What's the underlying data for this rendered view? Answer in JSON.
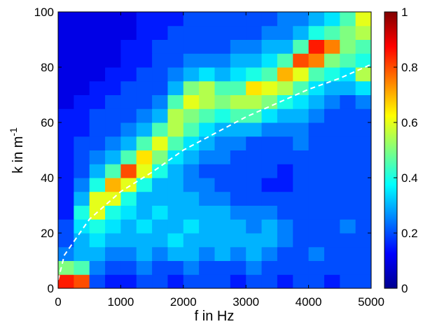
{
  "chart_data": {
    "type": "heatmap",
    "colormap": "jet",
    "xlabel": "f in Hz",
    "ylabel": "k in m",
    "ylabel_sup": "-1",
    "xlim": [
      0,
      5000
    ],
    "ylim": [
      0,
      100
    ],
    "xticks": [
      0,
      1000,
      2000,
      3000,
      4000,
      5000
    ],
    "yticks": [
      0,
      20,
      40,
      60,
      80,
      100
    ],
    "clim": [
      0,
      1
    ],
    "cticks": [
      0,
      0.2,
      0.4,
      0.6,
      0.8,
      1
    ],
    "x_bins": [
      0,
      250,
      500,
      750,
      1000,
      1250,
      1500,
      1750,
      2000,
      2250,
      2500,
      2750,
      3000,
      3250,
      3500,
      3750,
      4000,
      4250,
      4500,
      4750,
      5000
    ],
    "y_bins": [
      0,
      5,
      10,
      15,
      20,
      25,
      30,
      35,
      40,
      45,
      50,
      55,
      60,
      65,
      70,
      75,
      80,
      85,
      90,
      95,
      100
    ],
    "z": [
      [
        0.85,
        0.8,
        0.2,
        0.15,
        0.15,
        0.2,
        0.2,
        0.15,
        0.2,
        0.2,
        0.2,
        0.15,
        0.2,
        0.2,
        0.15,
        0.2,
        0.2,
        0.15,
        0.2,
        0.2
      ],
      [
        0.5,
        0.45,
        0.25,
        0.2,
        0.2,
        0.25,
        0.2,
        0.2,
        0.25,
        0.2,
        0.2,
        0.2,
        0.25,
        0.2,
        0.2,
        0.2,
        0.2,
        0.2,
        0.2,
        0.2
      ],
      [
        0.25,
        0.3,
        0.3,
        0.25,
        0.25,
        0.3,
        0.25,
        0.3,
        0.3,
        0.25,
        0.3,
        0.25,
        0.3,
        0.25,
        0.2,
        0.2,
        0.25,
        0.2,
        0.2,
        0.2
      ],
      [
        0.2,
        0.3,
        0.35,
        0.3,
        0.3,
        0.3,
        0.3,
        0.35,
        0.3,
        0.3,
        0.3,
        0.3,
        0.3,
        0.3,
        0.25,
        0.2,
        0.2,
        0.2,
        0.2,
        0.2
      ],
      [
        0.2,
        0.35,
        0.4,
        0.35,
        0.3,
        0.35,
        0.3,
        0.3,
        0.35,
        0.3,
        0.3,
        0.3,
        0.25,
        0.3,
        0.25,
        0.2,
        0.2,
        0.2,
        0.25,
        0.2
      ],
      [
        0.15,
        0.4,
        0.6,
        0.4,
        0.35,
        0.3,
        0.35,
        0.3,
        0.3,
        0.3,
        0.3,
        0.25,
        0.25,
        0.25,
        0.2,
        0.2,
        0.2,
        0.2,
        0.2,
        0.2
      ],
      [
        0.15,
        0.3,
        0.6,
        0.6,
        0.4,
        0.3,
        0.3,
        0.3,
        0.3,
        0.25,
        0.25,
        0.2,
        0.2,
        0.2,
        0.2,
        0.2,
        0.2,
        0.2,
        0.2,
        0.2
      ],
      [
        0.15,
        0.25,
        0.4,
        0.7,
        0.6,
        0.4,
        0.3,
        0.3,
        0.25,
        0.25,
        0.2,
        0.2,
        0.2,
        0.15,
        0.15,
        0.2,
        0.2,
        0.2,
        0.2,
        0.2
      ],
      [
        0.15,
        0.2,
        0.3,
        0.45,
        0.8,
        0.6,
        0.4,
        0.3,
        0.25,
        0.2,
        0.2,
        0.2,
        0.2,
        0.2,
        0.15,
        0.2,
        0.2,
        0.2,
        0.2,
        0.2
      ],
      [
        0.15,
        0.2,
        0.25,
        0.3,
        0.45,
        0.65,
        0.5,
        0.35,
        0.3,
        0.25,
        0.25,
        0.2,
        0.2,
        0.2,
        0.2,
        0.2,
        0.2,
        0.2,
        0.2,
        0.2
      ],
      [
        0.15,
        0.2,
        0.2,
        0.25,
        0.3,
        0.45,
        0.6,
        0.45,
        0.35,
        0.3,
        0.25,
        0.25,
        0.2,
        0.2,
        0.2,
        0.25,
        0.2,
        0.2,
        0.2,
        0.2
      ],
      [
        0.15,
        0.15,
        0.2,
        0.2,
        0.25,
        0.3,
        0.45,
        0.55,
        0.45,
        0.35,
        0.3,
        0.3,
        0.3,
        0.25,
        0.25,
        0.25,
        0.2,
        0.2,
        0.2,
        0.2
      ],
      [
        0.15,
        0.15,
        0.2,
        0.2,
        0.2,
        0.25,
        0.3,
        0.55,
        0.5,
        0.45,
        0.4,
        0.45,
        0.45,
        0.35,
        0.3,
        0.3,
        0.25,
        0.2,
        0.2,
        0.2
      ],
      [
        0.1,
        0.15,
        0.15,
        0.2,
        0.2,
        0.2,
        0.25,
        0.45,
        0.6,
        0.55,
        0.5,
        0.55,
        0.55,
        0.5,
        0.4,
        0.35,
        0.3,
        0.25,
        0.2,
        0.25
      ],
      [
        0.1,
        0.1,
        0.15,
        0.15,
        0.2,
        0.2,
        0.2,
        0.3,
        0.5,
        0.55,
        0.45,
        0.45,
        0.65,
        0.6,
        0.55,
        0.45,
        0.35,
        0.3,
        0.3,
        0.35
      ],
      [
        0.1,
        0.1,
        0.1,
        0.15,
        0.15,
        0.2,
        0.2,
        0.25,
        0.3,
        0.35,
        0.3,
        0.35,
        0.4,
        0.45,
        0.7,
        0.6,
        0.45,
        0.4,
        0.35,
        0.55
      ],
      [
        0.1,
        0.1,
        0.1,
        0.1,
        0.15,
        0.15,
        0.2,
        0.2,
        0.25,
        0.25,
        0.25,
        0.3,
        0.3,
        0.35,
        0.45,
        0.8,
        0.75,
        0.5,
        0.45,
        0.4
      ],
      [
        0.1,
        0.1,
        0.1,
        0.1,
        0.15,
        0.15,
        0.2,
        0.2,
        0.2,
        0.2,
        0.2,
        0.25,
        0.25,
        0.3,
        0.3,
        0.45,
        0.85,
        0.75,
        0.5,
        0.45
      ],
      [
        0.1,
        0.1,
        0.1,
        0.1,
        0.1,
        0.15,
        0.15,
        0.2,
        0.2,
        0.2,
        0.2,
        0.2,
        0.2,
        0.25,
        0.25,
        0.3,
        0.4,
        0.45,
        0.5,
        0.55
      ],
      [
        0.1,
        0.1,
        0.1,
        0.1,
        0.1,
        0.15,
        0.15,
        0.15,
        0.2,
        0.2,
        0.2,
        0.2,
        0.2,
        0.2,
        0.25,
        0.25,
        0.3,
        0.35,
        0.45,
        0.6
      ]
    ],
    "line": {
      "color": "#ffffff",
      "dash": true,
      "x": [
        0,
        100,
        500,
        1000,
        1500,
        2000,
        2500,
        3000,
        3500,
        4000,
        4500,
        5000
      ],
      "values": [
        3,
        12,
        25,
        35,
        42,
        50,
        56,
        62,
        67,
        72,
        76,
        81
      ]
    }
  }
}
